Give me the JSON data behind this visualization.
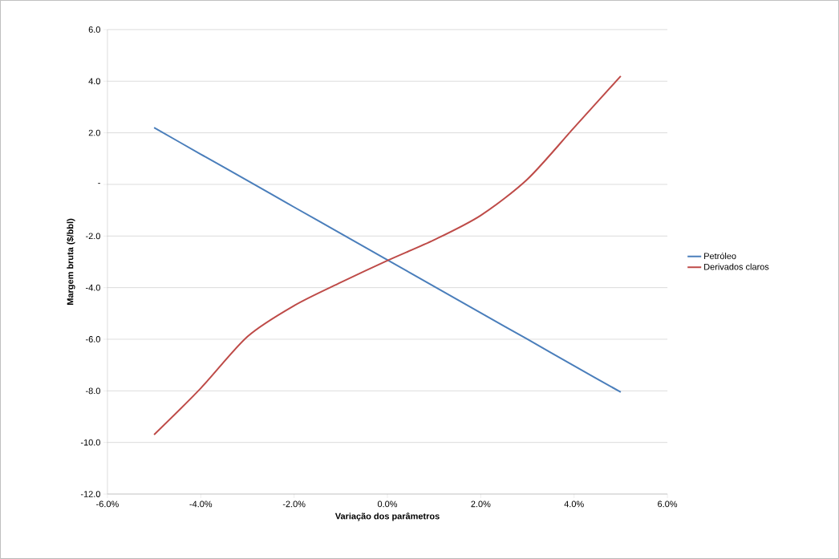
{
  "chart_data": {
    "type": "line",
    "xlabel": "Variação dos parâmetros",
    "ylabel": "Margem bruta ($/bbl)",
    "x": [
      -5,
      -4,
      -3,
      -2,
      -1,
      0,
      1,
      2,
      3,
      4,
      5
    ],
    "series": [
      {
        "name": "Petróleo",
        "color": "#4a7ebb",
        "values": [
          2.2,
          1.17,
          0.15,
          -0.88,
          -1.9,
          -2.93,
          -3.95,
          -4.98,
          -6.0,
          -7.03,
          -8.05
        ]
      },
      {
        "name": "Derivados claros",
        "color": "#be4b48",
        "values": [
          -9.7,
          -7.9,
          -5.9,
          -4.7,
          -3.8,
          -2.95,
          -2.15,
          -1.2,
          0.2,
          2.2,
          4.2
        ]
      }
    ],
    "xlim": [
      -6,
      6
    ],
    "ylim": [
      -12,
      6
    ],
    "xticks": [
      {
        "value": -6,
        "label": "-6.0%"
      },
      {
        "value": -4,
        "label": "-4.0%"
      },
      {
        "value": -2,
        "label": "-2.0%"
      },
      {
        "value": 0,
        "label": "0.0%"
      },
      {
        "value": 2,
        "label": "2.0%"
      },
      {
        "value": 4,
        "label": "4.0%"
      },
      {
        "value": 6,
        "label": "6.0%"
      }
    ],
    "yticks": [
      {
        "value": -12,
        "label": "-12.0"
      },
      {
        "value": -10,
        "label": "-10.0"
      },
      {
        "value": -8,
        "label": "-8.0"
      },
      {
        "value": -6,
        "label": "-6.0"
      },
      {
        "value": -4,
        "label": "-4.0"
      },
      {
        "value": -2,
        "label": "-2.0"
      },
      {
        "value": 0,
        "label": "-"
      },
      {
        "value": 2,
        "label": "2.0"
      },
      {
        "value": 4,
        "label": "4.0"
      },
      {
        "value": 6,
        "label": "6.0"
      }
    ],
    "grid": "y",
    "legend": "right",
    "marker": "none",
    "line_style": "solid"
  }
}
